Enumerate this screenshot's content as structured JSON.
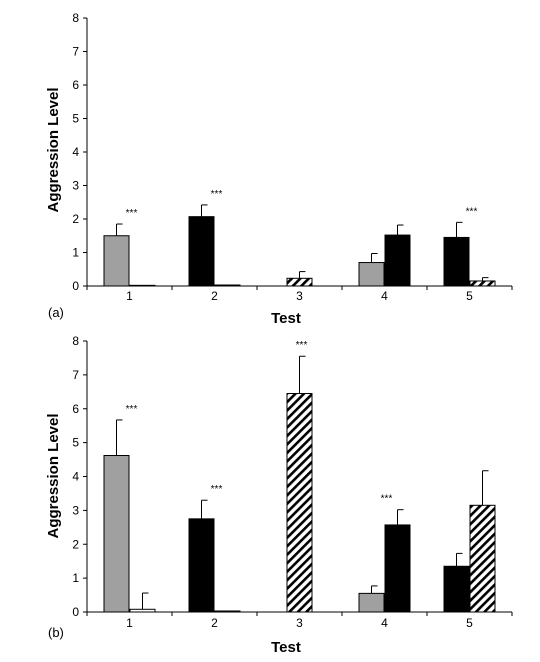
{
  "chart_data": [
    {
      "type": "bar",
      "panel_label": "(a)",
      "xlabel": "Test",
      "ylabel": "Aggression Level",
      "ylim": [
        0,
        8
      ],
      "yticks": [
        "0",
        "1",
        "2",
        "3",
        "4",
        "5",
        "6",
        "7",
        "8"
      ],
      "categories": [
        "1",
        "2",
        "3",
        "4",
        "5"
      ],
      "series": [
        {
          "fill": "#a0a0a0",
          "values": [
            1.5,
            0,
            0,
            0.7,
            0
          ],
          "errors": [
            0.35,
            0,
            0,
            0.27,
            0
          ]
        },
        {
          "fill": "#000000",
          "values": [
            0,
            2.07,
            0,
            1.52,
            1.45
          ],
          "errors": [
            0,
            0.35,
            0,
            0.3,
            0.45
          ]
        },
        {
          "fill": "hatch",
          "values": [
            0,
            0,
            0.23,
            0,
            0.15
          ],
          "errors": [
            0,
            0,
            0.2,
            0,
            0.1
          ]
        },
        {
          "fill": "#ffffff",
          "values": [
            0.02,
            0.03,
            0,
            0,
            0
          ],
          "errors": [
            0,
            0,
            0,
            0,
            0
          ]
        }
      ],
      "annotations": [
        {
          "category": "1",
          "text": "***"
        },
        {
          "category": "2",
          "text": "***"
        },
        {
          "category": "5",
          "text": "***"
        }
      ]
    },
    {
      "type": "bar",
      "panel_label": "(b)",
      "xlabel": "Test",
      "ylabel": "Aggression Level",
      "ylim": [
        0,
        8
      ],
      "yticks": [
        "0",
        "1",
        "2",
        "3",
        "4",
        "5",
        "6",
        "7",
        "8"
      ],
      "categories": [
        "1",
        "2",
        "3",
        "4",
        "5"
      ],
      "series": [
        {
          "fill": "#a0a0a0",
          "values": [
            4.62,
            0,
            0,
            0.55,
            0
          ],
          "errors": [
            1.05,
            0,
            0,
            0.22,
            0
          ]
        },
        {
          "fill": "#000000",
          "values": [
            0,
            2.75,
            0,
            2.57,
            1.35
          ],
          "errors": [
            0,
            0.55,
            0,
            0.45,
            0.38
          ]
        },
        {
          "fill": "hatch",
          "values": [
            0,
            0,
            6.45,
            0,
            3.15
          ],
          "errors": [
            0,
            0,
            1.1,
            0,
            1.02
          ]
        },
        {
          "fill": "#ffffff",
          "values": [
            0.08,
            0.03,
            0,
            0,
            0
          ],
          "errors": [
            0.48,
            0,
            0,
            0,
            0
          ]
        }
      ],
      "annotations": [
        {
          "category": "1",
          "text": "***"
        },
        {
          "category": "2",
          "text": "***"
        },
        {
          "category": "3",
          "text": "***"
        },
        {
          "category": "4",
          "text": "***"
        }
      ]
    }
  ]
}
